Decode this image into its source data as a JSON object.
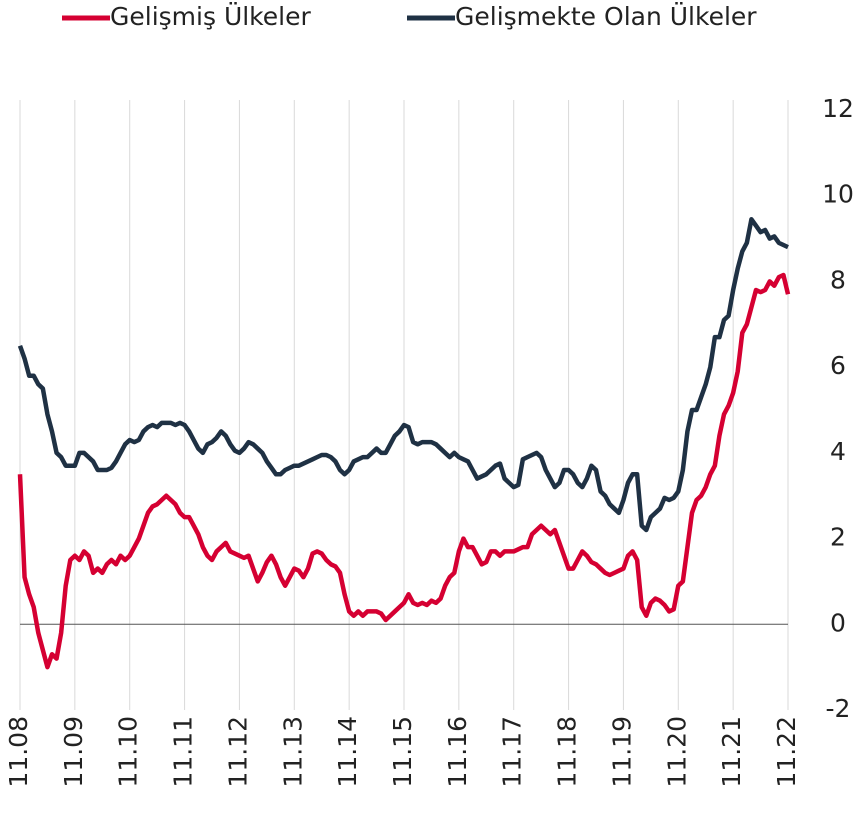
{
  "chart_data": {
    "type": "line",
    "categories": [
      "11.08",
      null,
      null,
      null,
      null,
      null,
      null,
      null,
      null,
      null,
      null,
      null,
      "11.09",
      null,
      null,
      null,
      null,
      null,
      null,
      null,
      null,
      null,
      null,
      null,
      "11.10",
      null,
      null,
      null,
      null,
      null,
      null,
      null,
      null,
      null,
      null,
      null,
      "11.11",
      null,
      null,
      null,
      null,
      null,
      null,
      null,
      null,
      null,
      null,
      null,
      "11.12",
      null,
      null,
      null,
      null,
      null,
      null,
      null,
      null,
      null,
      null,
      null,
      "11.13",
      null,
      null,
      null,
      null,
      null,
      null,
      null,
      null,
      null,
      null,
      null,
      "11.14",
      null,
      null,
      null,
      null,
      null,
      null,
      null,
      null,
      null,
      null,
      null,
      "11.15",
      null,
      null,
      null,
      null,
      null,
      null,
      null,
      null,
      null,
      null,
      null,
      "11.16",
      null,
      null,
      null,
      null,
      null,
      null,
      null,
      null,
      null,
      null,
      null,
      "11.17",
      null,
      null,
      null,
      null,
      null,
      null,
      null,
      null,
      null,
      null,
      null,
      "11.18",
      null,
      null,
      null,
      null,
      null,
      null,
      null,
      null,
      null,
      null,
      null,
      "11.19",
      null,
      null,
      null,
      null,
      null,
      null,
      null,
      null,
      null,
      null,
      null,
      "11.20",
      null,
      null,
      null,
      null,
      null,
      null,
      null,
      null,
      null,
      null,
      null,
      "11.21",
      null,
      null,
      null,
      null,
      null,
      null,
      null,
      null,
      null,
      null,
      null,
      "11.22"
    ],
    "series": [
      {
        "name": "Gelişmiş Ülkeler",
        "color": "#d50032",
        "values": [
          3.5,
          1.1,
          0.7,
          0.4,
          -0.2,
          -0.6,
          -1.0,
          -0.7,
          -0.8,
          -0.2,
          0.9,
          1.5,
          1.6,
          1.5,
          1.7,
          1.6,
          1.2,
          1.3,
          1.2,
          1.4,
          1.5,
          1.4,
          1.6,
          1.5,
          1.6,
          1.8,
          2.0,
          2.3,
          2.6,
          2.75,
          2.8,
          2.9,
          3.0,
          2.9,
          2.8,
          2.6,
          2.5,
          2.5,
          2.3,
          2.1,
          1.8,
          1.6,
          1.5,
          1.7,
          1.8,
          1.9,
          1.7,
          1.65,
          1.6,
          1.55,
          1.6,
          1.3,
          1.0,
          1.2,
          1.45,
          1.6,
          1.4,
          1.1,
          0.9,
          1.1,
          1.3,
          1.25,
          1.1,
          1.3,
          1.65,
          1.7,
          1.65,
          1.5,
          1.4,
          1.35,
          1.2,
          0.7,
          0.3,
          0.2,
          0.3,
          0.2,
          0.3,
          0.3,
          0.3,
          0.25,
          0.1,
          0.2,
          0.3,
          0.4,
          0.5,
          0.7,
          0.5,
          0.45,
          0.5,
          0.45,
          0.55,
          0.5,
          0.6,
          0.9,
          1.1,
          1.2,
          1.7,
          2.0,
          1.8,
          1.8,
          1.6,
          1.4,
          1.45,
          1.7,
          1.7,
          1.6,
          1.7,
          1.7,
          1.7,
          1.75,
          1.8,
          1.8,
          2.1,
          2.2,
          2.3,
          2.2,
          2.1,
          2.2,
          1.9,
          1.6,
          1.3,
          1.3,
          1.5,
          1.7,
          1.6,
          1.45,
          1.4,
          1.3,
          1.2,
          1.15,
          1.2,
          1.25,
          1.3,
          1.6,
          1.7,
          1.5,
          0.4,
          0.2,
          0.5,
          0.6,
          0.55,
          0.45,
          0.3,
          0.35,
          0.9,
          1.0,
          1.8,
          2.6,
          2.9,
          3.0,
          3.2,
          3.5,
          3.7,
          4.4,
          4.9,
          5.1,
          5.4,
          5.9,
          6.8,
          7.0,
          7.4,
          7.8,
          7.75,
          7.8,
          8.0,
          7.9,
          8.1,
          8.15,
          7.7
        ]
      },
      {
        "name": "Gelişmekte Olan Ülkeler",
        "color": "#1f3144",
        "values": [
          6.5,
          6.2,
          5.8,
          5.8,
          5.6,
          5.5,
          4.9,
          4.5,
          4.0,
          3.9,
          3.7,
          3.7,
          3.7,
          4.0,
          4.0,
          3.9,
          3.8,
          3.6,
          3.6,
          3.6,
          3.65,
          3.8,
          4.0,
          4.2,
          4.3,
          4.25,
          4.3,
          4.5,
          4.6,
          4.65,
          4.6,
          4.7,
          4.7,
          4.7,
          4.65,
          4.7,
          4.65,
          4.5,
          4.3,
          4.1,
          4.0,
          4.2,
          4.25,
          4.35,
          4.5,
          4.4,
          4.2,
          4.05,
          4.0,
          4.1,
          4.25,
          4.2,
          4.1,
          4.0,
          3.8,
          3.65,
          3.5,
          3.5,
          3.6,
          3.65,
          3.7,
          3.7,
          3.75,
          3.8,
          3.85,
          3.9,
          3.95,
          3.95,
          3.9,
          3.8,
          3.6,
          3.5,
          3.6,
          3.8,
          3.85,
          3.9,
          3.9,
          4.0,
          4.1,
          4.0,
          4.0,
          4.2,
          4.4,
          4.5,
          4.65,
          4.6,
          4.25,
          4.2,
          4.25,
          4.25,
          4.25,
          4.2,
          4.1,
          4.0,
          3.9,
          4.0,
          3.9,
          3.85,
          3.8,
          3.6,
          3.4,
          3.45,
          3.5,
          3.6,
          3.7,
          3.75,
          3.4,
          3.3,
          3.2,
          3.25,
          3.85,
          3.9,
          3.95,
          4.0,
          3.9,
          3.6,
          3.4,
          3.2,
          3.3,
          3.6,
          3.6,
          3.5,
          3.3,
          3.2,
          3.4,
          3.7,
          3.6,
          3.1,
          3.0,
          2.8,
          2.7,
          2.6,
          2.9,
          3.3,
          3.5,
          3.5,
          2.3,
          2.2,
          2.5,
          2.6,
          2.7,
          2.95,
          2.9,
          2.95,
          3.1,
          3.6,
          4.5,
          5.0,
          5.0,
          5.3,
          5.6,
          6.0,
          6.7,
          6.7,
          7.1,
          7.2,
          7.8,
          8.3,
          8.7,
          8.9,
          9.45,
          9.3,
          9.15,
          9.2,
          9.0,
          9.05,
          8.9,
          8.85,
          8.8
        ]
      }
    ],
    "ylim": [
      -2,
      12
    ],
    "yticks": [
      -2,
      0,
      2,
      4,
      6,
      8,
      10,
      12
    ],
    "xgrid": true,
    "zero_line": true,
    "legend": "top"
  }
}
